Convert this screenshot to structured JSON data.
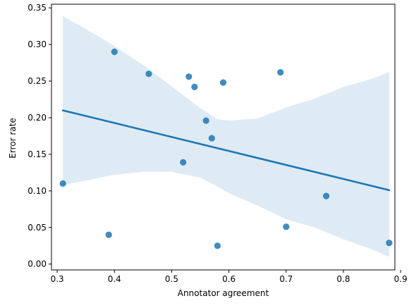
{
  "chart_data": {
    "type": "scatter",
    "title": "",
    "xlabel": "Annotator agreement",
    "ylabel": "Error rate",
    "xlim": [
      0.29,
      0.89
    ],
    "ylim": [
      -0.008,
      0.355
    ],
    "xticks": [
      0.3,
      0.4,
      0.5,
      0.6,
      0.7,
      0.8,
      0.9
    ],
    "yticks": [
      0.0,
      0.05,
      0.1,
      0.15,
      0.2,
      0.25,
      0.3,
      0.35
    ],
    "xtick_labels": [
      "0.3",
      "0.4",
      "0.5",
      "0.6",
      "0.7",
      "0.8",
      "0.9"
    ],
    "ytick_labels": [
      "0.00",
      "0.05",
      "0.10",
      "0.15",
      "0.20",
      "0.25",
      "0.30",
      "0.35"
    ],
    "grid": false,
    "legend": "none",
    "colors": {
      "points": "#1f77b4",
      "line": "#1f77b4",
      "band": "#1f77b4"
    },
    "points": [
      {
        "x": 0.31,
        "y": 0.11
      },
      {
        "x": 0.39,
        "y": 0.04
      },
      {
        "x": 0.4,
        "y": 0.29
      },
      {
        "x": 0.46,
        "y": 0.26
      },
      {
        "x": 0.52,
        "y": 0.139
      },
      {
        "x": 0.53,
        "y": 0.256
      },
      {
        "x": 0.54,
        "y": 0.242
      },
      {
        "x": 0.56,
        "y": 0.196
      },
      {
        "x": 0.57,
        "y": 0.172
      },
      {
        "x": 0.58,
        "y": 0.025
      },
      {
        "x": 0.59,
        "y": 0.248
      },
      {
        "x": 0.69,
        "y": 0.262
      },
      {
        "x": 0.7,
        "y": 0.051
      },
      {
        "x": 0.77,
        "y": 0.093
      },
      {
        "x": 0.88,
        "y": 0.029
      }
    ],
    "regression": {
      "x": [
        0.31,
        0.88
      ],
      "y": [
        0.21,
        0.101
      ]
    },
    "confidence_band": {
      "x": [
        0.31,
        0.35,
        0.4,
        0.45,
        0.5,
        0.55,
        0.58,
        0.6,
        0.65,
        0.7,
        0.75,
        0.8,
        0.85,
        0.88
      ],
      "upper": [
        0.339,
        0.321,
        0.298,
        0.272,
        0.243,
        0.213,
        0.198,
        0.196,
        0.199,
        0.214,
        0.226,
        0.242,
        0.253,
        0.262
      ],
      "lower": [
        0.108,
        0.114,
        0.122,
        0.126,
        0.126,
        0.118,
        0.106,
        0.097,
        0.08,
        0.061,
        0.05,
        0.034,
        0.02,
        0.01
      ]
    }
  }
}
